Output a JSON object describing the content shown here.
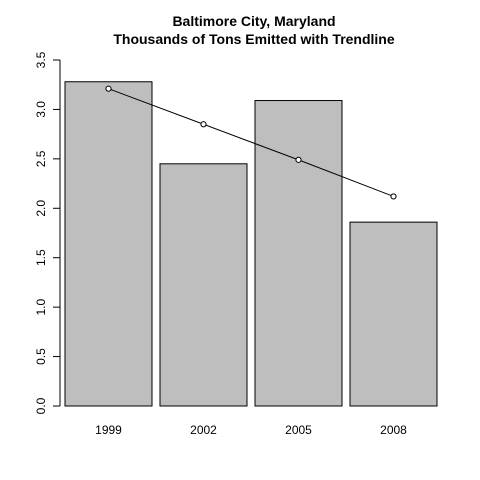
{
  "chart_data": {
    "type": "bar",
    "title": "Baltimore City, Maryland",
    "subtitle": "Thousands of Tons Emitted with Trendline",
    "xlabel": "",
    "ylabel": "",
    "categories": [
      "1999",
      "2002",
      "2005",
      "2008"
    ],
    "values": [
      3.28,
      2.45,
      3.09,
      1.86
    ],
    "trendline": {
      "type": "line",
      "values": [
        3.21,
        2.85,
        2.49,
        2.12
      ]
    },
    "ylim": [
      0,
      3.5
    ],
    "yticks": [
      "0.0",
      "0.5",
      "1.0",
      "1.5",
      "2.0",
      "2.5",
      "3.0",
      "3.5"
    ],
    "grid": false,
    "colors": {
      "bar_fill": "#bebebe",
      "bar_stroke": "#000000",
      "trendline": "#000000"
    }
  }
}
